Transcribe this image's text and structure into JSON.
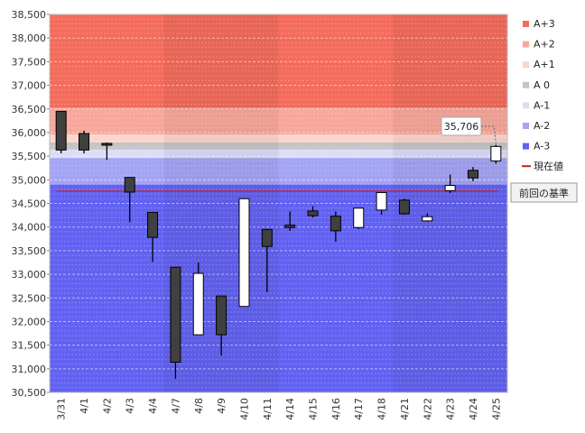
{
  "chart_data": {
    "type": "candlestick",
    "categories": [
      "3/31",
      "4/1",
      "4/2",
      "4/3",
      "4/4",
      "4/7",
      "4/8",
      "4/9",
      "4/10",
      "4/11",
      "4/14",
      "4/15",
      "4/16",
      "4/17",
      "4/18",
      "4/21",
      "4/22",
      "4/23",
      "4/24",
      "4/25"
    ],
    "ohlc": [
      {
        "open": 36450,
        "high": 36450,
        "low": 35560,
        "close": 35630
      },
      {
        "open": 35980,
        "high": 36040,
        "low": 35560,
        "close": 35630
      },
      {
        "open": 35770,
        "high": 35790,
        "low": 35420,
        "close": 35740
      },
      {
        "open": 35050,
        "high": 35050,
        "low": 34100,
        "close": 34740
      },
      {
        "open": 34310,
        "high": 34310,
        "low": 33260,
        "close": 33780
      },
      {
        "open": 33150,
        "high": 33150,
        "low": 30790,
        "close": 31140
      },
      {
        "open": 31720,
        "high": 33250,
        "low": 31720,
        "close": 33020
      },
      {
        "open": 32540,
        "high": 32540,
        "low": 31280,
        "close": 31720
      },
      {
        "open": 32320,
        "high": 34600,
        "low": 32320,
        "close": 34600
      },
      {
        "open": 33950,
        "high": 33950,
        "low": 32620,
        "close": 33590
      },
      {
        "open": 34040,
        "high": 34330,
        "low": 33920,
        "close": 33990
      },
      {
        "open": 34340,
        "high": 34440,
        "low": 34200,
        "close": 34240
      },
      {
        "open": 34230,
        "high": 34330,
        "low": 33690,
        "close": 33920
      },
      {
        "open": 33990,
        "high": 34400,
        "low": 33960,
        "close": 34400
      },
      {
        "open": 34360,
        "high": 34730,
        "low": 34260,
        "close": 34730
      },
      {
        "open": 34570,
        "high": 34600,
        "low": 34260,
        "close": 34280
      },
      {
        "open": 34130,
        "high": 34290,
        "low": 34110,
        "close": 34220
      },
      {
        "open": 34770,
        "high": 35110,
        "low": 34720,
        "close": 34880
      },
      {
        "open": 35200,
        "high": 35270,
        "low": 34970,
        "close": 35040
      },
      {
        "open": 35400,
        "high": 35740,
        "low": 35340,
        "close": 35706
      }
    ],
    "y_ticks": [
      "30,500",
      "31,000",
      "31,500",
      "32,000",
      "32,500",
      "33,000",
      "33,500",
      "34,000",
      "34,500",
      "35,000",
      "35,500",
      "36,000",
      "36,500",
      "37,000",
      "37,500",
      "38,000",
      "38,500"
    ],
    "ylim": [
      30500,
      38500
    ],
    "bands": [
      {
        "name": "A+3",
        "from": 36520,
        "to": 38500,
        "color": "#f46c5c"
      },
      {
        "name": "A+2",
        "from": 35960,
        "to": 36520,
        "color": "#f9a79b"
      },
      {
        "name": "A+1",
        "from": 35790,
        "to": 35960,
        "color": "#fcd5cd"
      },
      {
        "name": "A 0",
        "from": 35640,
        "to": 35790,
        "color": "#c4c4c4"
      },
      {
        "name": "A-1",
        "from": 35460,
        "to": 35640,
        "color": "#dcdcf7"
      },
      {
        "name": "A-2",
        "from": 34900,
        "to": 35460,
        "color": "#a4a4f6"
      },
      {
        "name": "A-3",
        "from": 30500,
        "to": 34900,
        "color": "#6262f2"
      }
    ],
    "current_value": {
      "label": "現在値",
      "value": 34760,
      "color": "#cc2222"
    },
    "callout": {
      "label": "35,706",
      "value": 35706
    },
    "annotation_box": "前回の基準",
    "grid": true,
    "legend_position": "right"
  }
}
